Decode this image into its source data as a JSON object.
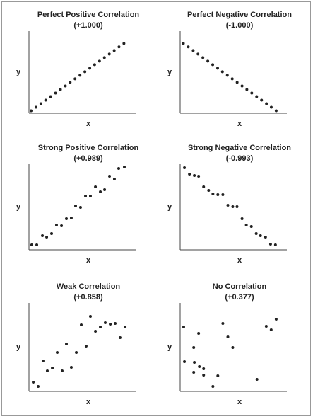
{
  "chart_data": [
    {
      "type": "scatter",
      "title": "Perfect Positive Correlation",
      "subtitle": "(+1.000)",
      "xlabel": "x",
      "ylabel": "y",
      "color": "#222222",
      "xlim": [
        0,
        100
      ],
      "ylim": [
        0,
        100
      ],
      "x": [
        2,
        6.6,
        11.2,
        15.7,
        20.3,
        24.9,
        29.5,
        34.1,
        38.6,
        43.2,
        47.8,
        52.4,
        57,
        61.5,
        66.1,
        70.7,
        75.3,
        79.9,
        84.4,
        89
      ],
      "y": [
        3,
        7.3,
        11.6,
        16,
        20.3,
        24.6,
        28.9,
        33.2,
        37.6,
        41.9,
        46.2,
        50.5,
        54.8,
        59.2,
        63.5,
        67.8,
        72.1,
        76.4,
        80.8,
        85
      ]
    },
    {
      "type": "scatter",
      "title": "Perfect Negative Correlation",
      "subtitle": "(-1.000)",
      "xlabel": "x",
      "ylabel": "y",
      "color": "#222222",
      "xlim": [
        0,
        100
      ],
      "ylim": [
        0,
        100
      ],
      "x": [
        3,
        7.6,
        12.2,
        16.7,
        21.3,
        25.9,
        30.5,
        35.1,
        39.6,
        44.2,
        48.8,
        53.4,
        58,
        62.5,
        67.1,
        71.7,
        76.3,
        80.9,
        85.4,
        90
      ],
      "y": [
        85,
        80.8,
        76.4,
        72.1,
        67.8,
        63.5,
        59.2,
        54.8,
        50.5,
        46.2,
        41.9,
        37.6,
        33.2,
        28.9,
        24.6,
        20.3,
        16,
        11.6,
        7.3,
        3
      ]
    },
    {
      "type": "scatter",
      "title": "Strong Positive Correlation",
      "subtitle": "(+0.989)",
      "xlabel": "x",
      "ylabel": "y",
      "color": "#222222",
      "xlim": [
        0,
        100
      ],
      "ylim": [
        0,
        100
      ],
      "x": [
        2.6,
        7.3,
        12.6,
        16.6,
        21.2,
        25.8,
        30.5,
        35.1,
        39.7,
        43.7,
        48.3,
        53,
        57.6,
        62.3,
        66.9,
        70.9,
        75.5,
        80.1,
        84.1,
        89.4
      ],
      "y": [
        5.8,
        5.8,
        16.5,
        14.9,
        19,
        28.9,
        28.1,
        36.4,
        37.2,
        51.2,
        49.6,
        62.8,
        62.8,
        73.6,
        67.8,
        70.2,
        86,
        82.6,
        95,
        96.7
      ]
    },
    {
      "type": "scatter",
      "title": "Strong Negative Correlation",
      "subtitle": "(-0.993)",
      "xlabel": "x",
      "ylabel": "y",
      "color": "#222222",
      "xlim": [
        0,
        100
      ],
      "ylim": [
        0,
        100
      ],
      "x": [
        4,
        8.7,
        13.3,
        17.3,
        22,
        26.7,
        30.7,
        35.3,
        40,
        44.7,
        49.3,
        53.3,
        58,
        62,
        66.7,
        71.3,
        75.3,
        80,
        84.7,
        89.3
      ],
      "y": [
        95.9,
        88.4,
        86.8,
        86,
        73.6,
        69.4,
        65.3,
        64.5,
        64.5,
        52.1,
        50.4,
        50.4,
        36.4,
        28.9,
        27.3,
        19,
        16.5,
        14.9,
        6.6,
        5.8
      ]
    },
    {
      "type": "scatter",
      "title": "Weak Correlation",
      "subtitle": "(+0.858)",
      "xlabel": "x",
      "ylabel": "y",
      "color": "#222222",
      "xlim": [
        0,
        100
      ],
      "ylim": [
        0,
        100
      ],
      "x": [
        4,
        8.6,
        13.2,
        17.2,
        21.9,
        26.5,
        31.1,
        35.1,
        39.7,
        44.4,
        49,
        53.6,
        57.6,
        62.3,
        66.9,
        71.5,
        76.2,
        80.8,
        85.4,
        90.1
      ],
      "y": [
        10.4,
        5.6,
        34.4,
        23.2,
        26.4,
        44,
        23.2,
        53.6,
        27.2,
        44,
        75.2,
        51.2,
        84.8,
        68,
        72.8,
        77.6,
        76,
        76.8,
        60.8,
        72.8
      ]
    },
    {
      "type": "scatter",
      "title": "No Correlation",
      "subtitle": "(+0.377)",
      "xlabel": "x",
      "ylabel": "y",
      "color": "#222222",
      "xlim": [
        0,
        100
      ],
      "ylim": [
        0,
        100
      ],
      "x": [
        3.3,
        4,
        12.7,
        12.7,
        13.3,
        17.3,
        18,
        22,
        22,
        30.7,
        35.3,
        40,
        44.7,
        49.3,
        72,
        80.7,
        85.3,
        90
      ],
      "y": [
        72.8,
        33.6,
        49.6,
        21.6,
        32.8,
        65.6,
        28,
        25.6,
        18.4,
        5.6,
        17.6,
        76.8,
        61.6,
        49.6,
        13.6,
        73.6,
        69.6,
        81.6
      ]
    }
  ]
}
